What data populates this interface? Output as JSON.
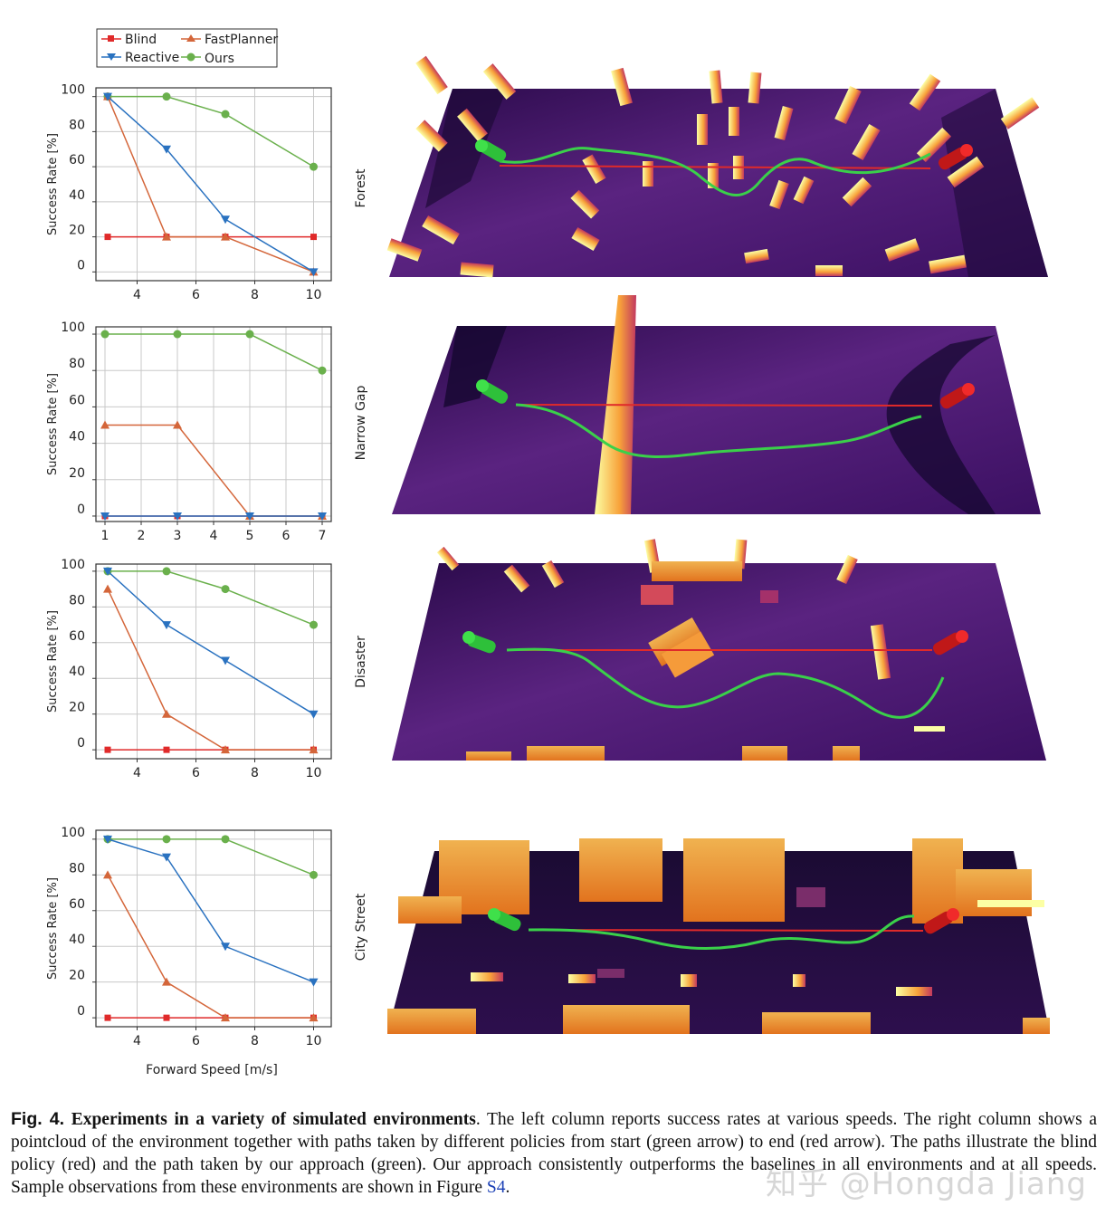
{
  "legend": {
    "entries": [
      "Blind",
      "FastPlanner",
      "Reactive",
      "Ours"
    ]
  },
  "colors": {
    "Blind": "#e02a2a",
    "FastPlanner": "#d4663a",
    "Reactive": "#2a72c0",
    "Ours": "#6ab04c",
    "grid": "#c8c8c8"
  },
  "axes": {
    "ylabel": "Success Rate [%]",
    "xlabel": "Forward Speed [m/s]"
  },
  "chart_data": [
    {
      "type": "line",
      "env": "Forest",
      "x": [
        3,
        5,
        7,
        10
      ],
      "xticks": [
        4,
        6,
        8,
        10
      ],
      "xlim": [
        2.6,
        10.6
      ],
      "yticks": [
        0,
        20,
        40,
        60,
        80,
        100
      ],
      "ylim": [
        -5,
        105
      ],
      "series": [
        {
          "name": "Blind",
          "values": [
            20,
            20,
            20,
            20
          ]
        },
        {
          "name": "FastPlanner",
          "values": [
            100,
            20,
            20,
            0
          ]
        },
        {
          "name": "Reactive",
          "values": [
            100,
            70,
            30,
            0
          ]
        },
        {
          "name": "Ours",
          "values": [
            100,
            100,
            90,
            60
          ]
        }
      ]
    },
    {
      "type": "line",
      "env": "Narrow Gap",
      "x": [
        1,
        3,
        5,
        7
      ],
      "xticks": [
        1,
        2,
        3,
        4,
        5,
        6,
        7
      ],
      "xlim": [
        0.75,
        7.25
      ],
      "yticks": [
        0,
        20,
        40,
        60,
        80,
        100
      ],
      "ylim": [
        -3,
        104
      ],
      "series": [
        {
          "name": "Blind",
          "values": [
            0,
            0,
            0,
            0
          ]
        },
        {
          "name": "FastPlanner",
          "values": [
            50,
            50,
            0,
            0
          ]
        },
        {
          "name": "Reactive",
          "values": [
            0,
            0,
            0,
            0
          ]
        },
        {
          "name": "Ours",
          "values": [
            100,
            100,
            100,
            80
          ]
        }
      ]
    },
    {
      "type": "line",
      "env": "Disaster",
      "x": [
        3,
        5,
        7,
        10
      ],
      "xticks": [
        4,
        6,
        8,
        10
      ],
      "xlim": [
        2.6,
        10.6
      ],
      "yticks": [
        0,
        20,
        40,
        60,
        80,
        100
      ],
      "ylim": [
        -5,
        104
      ],
      "series": [
        {
          "name": "Blind",
          "values": [
            0,
            0,
            0,
            0
          ]
        },
        {
          "name": "FastPlanner",
          "values": [
            90,
            20,
            0,
            0
          ]
        },
        {
          "name": "Reactive",
          "values": [
            100,
            70,
            50,
            20
          ]
        },
        {
          "name": "Ours",
          "values": [
            100,
            100,
            90,
            70
          ]
        }
      ]
    },
    {
      "type": "line",
      "env": "City Street",
      "x": [
        3,
        5,
        7,
        10
      ],
      "xticks": [
        4,
        6,
        8,
        10
      ],
      "xlim": [
        2.6,
        10.6
      ],
      "yticks": [
        0,
        20,
        40,
        60,
        80,
        100
      ],
      "ylim": [
        -5,
        105
      ],
      "series": [
        {
          "name": "Blind",
          "values": [
            0,
            0,
            0,
            0
          ]
        },
        {
          "name": "FastPlanner",
          "values": [
            80,
            20,
            0,
            0
          ]
        },
        {
          "name": "Reactive",
          "values": [
            100,
            90,
            40,
            20
          ]
        },
        {
          "name": "Ours",
          "values": [
            100,
            100,
            100,
            80
          ]
        }
      ]
    }
  ],
  "caption": {
    "fig": "Fig. 4.",
    "title": "Experiments in a variety of simulated environments",
    "body_before_ref": ". The left column reports success rates at various speeds. The right column shows a pointcloud of the environment together with paths taken by different policies from start (green arrow) to end (red arrow). The paths illustrate the blind policy (red) and the path taken by our approach (green). Our approach consistently outperforms the baselines in all environments and at all speeds. Sample observations from these environments are shown in Figure ",
    "ref": "S4",
    "end": "."
  },
  "watermark": "知乎 @Hongda Jiang"
}
